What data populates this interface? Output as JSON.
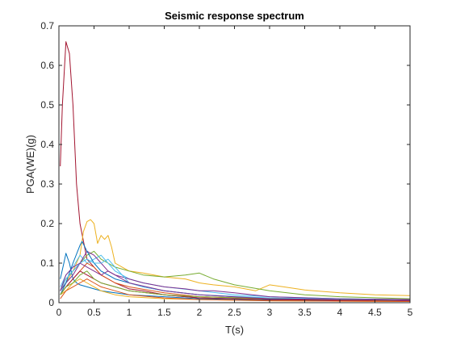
{
  "chart_data": {
    "type": "line",
    "title": "Seismic response spectrum",
    "xlabel": "T(s)",
    "ylabel": "PGA(WE)(g)",
    "xlim": [
      0,
      5
    ],
    "ylim": [
      0,
      0.7
    ],
    "xticks": [
      0,
      0.5,
      1,
      1.5,
      2,
      2.5,
      3,
      3.5,
      4,
      4.5,
      5
    ],
    "yticks": [
      0,
      0.1,
      0.2,
      0.3,
      0.4,
      0.5,
      0.6,
      0.7
    ],
    "grid": false,
    "legend": "none",
    "series": [
      {
        "color": "#A2142F",
        "x": [
          0.02,
          0.05,
          0.1,
          0.15,
          0.2,
          0.25,
          0.3,
          0.4,
          0.5,
          0.6,
          0.8,
          1.0,
          1.2,
          1.5,
          2.0,
          3.0,
          4.0,
          5.0
        ],
        "y": [
          0.345,
          0.5,
          0.66,
          0.63,
          0.5,
          0.3,
          0.2,
          0.11,
          0.09,
          0.07,
          0.05,
          0.035,
          0.03,
          0.02,
          0.012,
          0.008,
          0.005,
          0.004
        ]
      },
      {
        "color": "#EDB120",
        "x": [
          0.02,
          0.1,
          0.2,
          0.3,
          0.35,
          0.4,
          0.45,
          0.5,
          0.55,
          0.6,
          0.65,
          0.7,
          0.75,
          0.8,
          0.9,
          1.0,
          1.2,
          1.5,
          1.8,
          2.0,
          2.2,
          2.5,
          2.8,
          3.0,
          3.2,
          3.5,
          4.0,
          4.5,
          5.0
        ],
        "y": [
          0.03,
          0.05,
          0.08,
          0.12,
          0.18,
          0.205,
          0.21,
          0.2,
          0.15,
          0.17,
          0.16,
          0.17,
          0.14,
          0.1,
          0.09,
          0.08,
          0.075,
          0.065,
          0.06,
          0.05,
          0.045,
          0.04,
          0.03,
          0.045,
          0.04,
          0.032,
          0.025,
          0.02,
          0.018
        ]
      },
      {
        "color": "#77AC30",
        "x": [
          0.02,
          0.1,
          0.2,
          0.3,
          0.4,
          0.5,
          0.6,
          0.7,
          0.8,
          1.0,
          1.2,
          1.5,
          1.8,
          2.0,
          2.2,
          2.5,
          3.0,
          3.5,
          4.0,
          5.0
        ],
        "y": [
          0.03,
          0.06,
          0.08,
          0.1,
          0.12,
          0.13,
          0.11,
          0.1,
          0.09,
          0.08,
          0.07,
          0.065,
          0.07,
          0.075,
          0.06,
          0.045,
          0.03,
          0.02,
          0.015,
          0.01
        ]
      },
      {
        "color": "#4DBEEE",
        "x": [
          0.02,
          0.1,
          0.2,
          0.3,
          0.4,
          0.5,
          0.6,
          0.7,
          0.8,
          1.0,
          1.2,
          1.5,
          2.0,
          2.5,
          3.0,
          4.0,
          5.0
        ],
        "y": [
          0.04,
          0.07,
          0.09,
          0.12,
          0.1,
          0.11,
          0.12,
          0.1,
          0.08,
          0.06,
          0.05,
          0.04,
          0.03,
          0.02,
          0.015,
          0.01,
          0.008
        ]
      },
      {
        "color": "#0072BD",
        "x": [
          0.02,
          0.07,
          0.1,
          0.15,
          0.2,
          0.25,
          0.3,
          0.4,
          0.5,
          0.6,
          0.8,
          1.0,
          1.5,
          2.0,
          3.0,
          5.0
        ],
        "y": [
          0.06,
          0.1,
          0.125,
          0.1,
          0.06,
          0.05,
          0.045,
          0.04,
          0.035,
          0.03,
          0.025,
          0.02,
          0.015,
          0.01,
          0.007,
          0.005
        ]
      },
      {
        "color": "#7E2F8E",
        "x": [
          0.02,
          0.1,
          0.2,
          0.3,
          0.4,
          0.5,
          0.6,
          0.7,
          0.8,
          1.0,
          1.2,
          1.5,
          1.8,
          2.0,
          2.2,
          2.5,
          3.0,
          4.0,
          5.0
        ],
        "y": [
          0.03,
          0.05,
          0.07,
          0.1,
          0.13,
          0.12,
          0.1,
          0.08,
          0.07,
          0.06,
          0.05,
          0.04,
          0.035,
          0.03,
          0.03,
          0.025,
          0.015,
          0.01,
          0.008
        ]
      },
      {
        "color": "#D95319",
        "x": [
          0.02,
          0.1,
          0.2,
          0.3,
          0.4,
          0.5,
          0.6,
          0.8,
          1.0,
          1.5,
          2.0,
          3.0,
          5.0
        ],
        "y": [
          0.02,
          0.04,
          0.06,
          0.08,
          0.1,
          0.09,
          0.07,
          0.05,
          0.04,
          0.025,
          0.015,
          0.01,
          0.006
        ]
      },
      {
        "color": "#0072BD",
        "x": [
          0.02,
          0.1,
          0.2,
          0.3,
          0.33,
          0.4,
          0.5,
          0.6,
          0.7,
          0.8,
          1.0,
          1.2,
          1.5,
          2.0,
          2.5,
          3.0,
          4.0,
          5.0
        ],
        "y": [
          0.02,
          0.05,
          0.1,
          0.145,
          0.155,
          0.13,
          0.1,
          0.08,
          0.07,
          0.06,
          0.05,
          0.04,
          0.03,
          0.02,
          0.015,
          0.01,
          0.007,
          0.005
        ]
      },
      {
        "color": "#4DBEEE",
        "x": [
          0.02,
          0.1,
          0.2,
          0.3,
          0.4,
          0.5,
          0.6,
          0.7,
          0.8,
          0.9,
          1.0,
          1.2,
          1.5,
          2.0,
          3.0,
          5.0
        ],
        "y": [
          0.03,
          0.06,
          0.08,
          0.1,
          0.11,
          0.1,
          0.1,
          0.11,
          0.09,
          0.07,
          0.05,
          0.04,
          0.03,
          0.02,
          0.012,
          0.006
        ]
      },
      {
        "color": "#A2142F",
        "x": [
          0.02,
          0.1,
          0.2,
          0.3,
          0.4,
          0.5,
          0.6,
          0.8,
          1.0,
          1.5,
          2.0,
          3.0,
          5.0
        ],
        "y": [
          0.02,
          0.04,
          0.06,
          0.08,
          0.07,
          0.06,
          0.05,
          0.04,
          0.03,
          0.02,
          0.012,
          0.008,
          0.004
        ]
      },
      {
        "color": "#EDB120",
        "x": [
          0.02,
          0.1,
          0.2,
          0.3,
          0.4,
          0.5,
          0.6,
          0.8,
          1.0,
          1.5,
          2.0,
          3.0,
          5.0
        ],
        "y": [
          0.02,
          0.03,
          0.05,
          0.06,
          0.05,
          0.04,
          0.03,
          0.02,
          0.015,
          0.01,
          0.008,
          0.005,
          0.003
        ]
      },
      {
        "color": "#77AC30",
        "x": [
          0.02,
          0.1,
          0.2,
          0.3,
          0.4,
          0.5,
          0.6,
          0.8,
          1.0,
          1.5,
          2.0,
          3.0,
          5.0
        ],
        "y": [
          0.02,
          0.04,
          0.05,
          0.07,
          0.08,
          0.06,
          0.05,
          0.04,
          0.03,
          0.02,
          0.015,
          0.01,
          0.006
        ]
      },
      {
        "color": "#7E2F8E",
        "x": [
          0.02,
          0.1,
          0.2,
          0.3,
          0.4,
          0.5,
          0.6,
          0.7,
          0.8,
          1.0,
          1.5,
          2.0,
          3.0,
          5.0
        ],
        "y": [
          0.03,
          0.07,
          0.09,
          0.1,
          0.09,
          0.08,
          0.07,
          0.08,
          0.07,
          0.05,
          0.03,
          0.02,
          0.01,
          0.006
        ]
      },
      {
        "color": "#D95319",
        "x": [
          0.02,
          0.1,
          0.2,
          0.3,
          0.4,
          0.5,
          0.6,
          0.8,
          1.0,
          1.5,
          2.0,
          3.0,
          5.0
        ],
        "y": [
          0.01,
          0.03,
          0.04,
          0.05,
          0.06,
          0.05,
          0.04,
          0.03,
          0.02,
          0.012,
          0.008,
          0.005,
          0.003
        ]
      }
    ]
  }
}
